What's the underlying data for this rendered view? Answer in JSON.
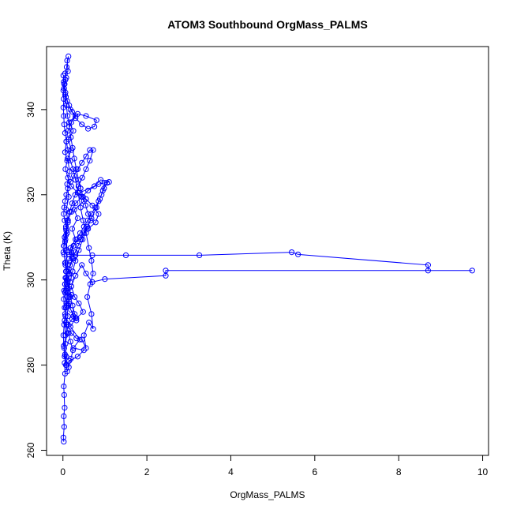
{
  "chart_data": {
    "type": "scatter",
    "title": "ATOM3 Southbound OrgMass_PALMS",
    "xlabel": "OrgMass_PALMS",
    "ylabel": "Theta (K)",
    "xlim": [
      -0.39,
      10.14
    ],
    "ylim": [
      258.8,
      354.8
    ],
    "xticks": [
      0,
      2,
      4,
      6,
      8,
      10
    ],
    "yticks": [
      260,
      280,
      300,
      320,
      340
    ],
    "series_color": "#0000ff",
    "grid": false,
    "legend": "none",
    "plot_style": "lines with open circle markers",
    "series": [
      {
        "values": [
          [
            0.02,
            262.0
          ],
          [
            0.01,
            263.0
          ],
          [
            0.03,
            265.5
          ],
          [
            0.02,
            268.0
          ],
          [
            0.04,
            270.0
          ],
          [
            0.03,
            273.0
          ],
          [
            0.02,
            275.0
          ],
          [
            0.05,
            278.0
          ],
          [
            0.04,
            280.5
          ],
          [
            0.08,
            282.0
          ],
          [
            0.06,
            285.0
          ],
          [
            0.1,
            287.5
          ],
          [
            0.07,
            290.0
          ],
          [
            0.12,
            291.5
          ],
          [
            0.09,
            294.0
          ],
          [
            0.15,
            296.0
          ],
          [
            0.11,
            298.0
          ],
          [
            0.2,
            300.5
          ],
          [
            0.14,
            302.5
          ],
          [
            0.25,
            305.0
          ],
          [
            0.18,
            307.5
          ],
          [
            0.3,
            309.5
          ],
          [
            0.22,
            312.0
          ],
          [
            0.35,
            314.5
          ],
          [
            0.27,
            316.5
          ],
          [
            0.5,
            318.5
          ],
          [
            0.4,
            320.5
          ],
          [
            0.75,
            322.0
          ],
          [
            0.9,
            323.5
          ],
          [
            1.1,
            323.0
          ],
          [
            0.85,
            322.5
          ],
          [
            0.6,
            321.0
          ],
          [
            0.45,
            319.5
          ],
          [
            0.3,
            318.0
          ],
          [
            0.2,
            316.0
          ],
          [
            0.12,
            314.0
          ],
          [
            0.08,
            311.5
          ],
          [
            0.05,
            309.0
          ],
          [
            0.1,
            306.5
          ],
          [
            0.06,
            304.0
          ],
          [
            0.15,
            301.5
          ],
          [
            0.09,
            299.0
          ],
          [
            0.2,
            296.5
          ],
          [
            0.13,
            294.0
          ],
          [
            0.3,
            291.0
          ],
          [
            0.18,
            289.0
          ],
          [
            0.4,
            286.0
          ],
          [
            0.25,
            284.0
          ],
          [
            0.5,
            283.5
          ],
          [
            0.35,
            282.0
          ],
          [
            0.15,
            281.0
          ],
          [
            0.08,
            280.0
          ],
          [
            0.05,
            282.5
          ],
          [
            0.03,
            284.0
          ],
          [
            0.06,
            287.0
          ],
          [
            0.04,
            290.5
          ],
          [
            0.07,
            293.5
          ],
          [
            0.05,
            297.0
          ],
          [
            0.09,
            300.0
          ],
          [
            0.06,
            303.5
          ],
          [
            0.1,
            307.0
          ],
          [
            0.07,
            310.5
          ],
          [
            0.12,
            313.5
          ],
          [
            0.08,
            316.5
          ],
          [
            0.14,
            319.5
          ],
          [
            0.1,
            322.5
          ],
          [
            0.16,
            325.5
          ],
          [
            0.11,
            328.5
          ],
          [
            0.2,
            330.5
          ],
          [
            0.13,
            333.0
          ],
          [
            0.25,
            335.0
          ],
          [
            0.15,
            337.0
          ],
          [
            0.3,
            338.5
          ],
          [
            0.18,
            340.0
          ],
          [
            0.1,
            342.0
          ],
          [
            0.06,
            344.0
          ],
          [
            0.04,
            346.0
          ],
          [
            0.08,
            347.5
          ],
          [
            0.05,
            348.5
          ],
          [
            0.12,
            349.0
          ],
          [
            0.1,
            351.5
          ],
          [
            0.13,
            352.5
          ],
          [
            0.09,
            350.0
          ],
          [
            0.06,
            347.0
          ],
          [
            0.03,
            345.0
          ],
          [
            0.07,
            343.0
          ],
          [
            0.15,
            341.0
          ],
          [
            0.22,
            339.5
          ],
          [
            0.3,
            338.0
          ],
          [
            0.45,
            336.5
          ],
          [
            0.6,
            335.5
          ],
          [
            0.75,
            336.0
          ],
          [
            0.8,
            337.5
          ],
          [
            0.55,
            338.5
          ],
          [
            0.35,
            339.0
          ],
          [
            0.2,
            337.0
          ],
          [
            0.12,
            335.0
          ],
          [
            0.08,
            332.5
          ],
          [
            0.05,
            330.0
          ],
          [
            0.1,
            328.0
          ],
          [
            0.06,
            326.0
          ],
          [
            0.12,
            324.0
          ],
          [
            0.2,
            322.0
          ],
          [
            0.35,
            320.5
          ],
          [
            0.55,
            319.0
          ],
          [
            0.7,
            317.5
          ],
          [
            0.85,
            315.5
          ],
          [
            0.78,
            313.5
          ],
          [
            0.6,
            312.0
          ],
          [
            0.4,
            310.0
          ],
          [
            0.25,
            308.0
          ],
          [
            0.15,
            306.0
          ],
          [
            0.3,
            305.8
          ],
          [
            0.7,
            305.8
          ],
          [
            1.5,
            305.8
          ],
          [
            3.25,
            305.8
          ],
          [
            5.45,
            306.5
          ],
          [
            5.6,
            306.0
          ],
          [
            8.7,
            303.5
          ],
          [
            8.7,
            302.2
          ],
          [
            9.75,
            302.2
          ],
          [
            2.45,
            302.2
          ],
          [
            2.45,
            301.0
          ],
          [
            1.0,
            300.2
          ],
          [
            0.7,
            299.5
          ],
          [
            0.55,
            301.5
          ],
          [
            0.45,
            303.5
          ],
          [
            0.3,
            301.0
          ],
          [
            0.2,
            298.5
          ],
          [
            0.28,
            296.0
          ],
          [
            0.38,
            294.5
          ],
          [
            0.48,
            292.5
          ],
          [
            0.32,
            291.0
          ],
          [
            0.22,
            290.8
          ],
          [
            0.12,
            289.5
          ],
          [
            0.2,
            287.5
          ],
          [
            0.32,
            286.3
          ],
          [
            0.45,
            286.0
          ],
          [
            0.55,
            284.0
          ],
          [
            0.5,
            287.0
          ],
          [
            0.62,
            290.0
          ],
          [
            0.72,
            288.5
          ],
          [
            0.68,
            292.0
          ],
          [
            0.58,
            296.0
          ],
          [
            0.65,
            299.0
          ],
          [
            0.72,
            301.5
          ],
          [
            0.68,
            304.5
          ],
          [
            0.62,
            307.5
          ],
          [
            0.55,
            311.0
          ],
          [
            0.48,
            314.0
          ],
          [
            0.42,
            317.0
          ],
          [
            0.36,
            320.5
          ],
          [
            0.3,
            323.5
          ],
          [
            0.24,
            326.0
          ],
          [
            0.18,
            328.0
          ],
          [
            0.12,
            330.5
          ],
          [
            0.08,
            332.5
          ],
          [
            0.05,
            334.5
          ],
          [
            0.03,
            336.5
          ],
          [
            0.02,
            338.5
          ],
          [
            0.01,
            340.5
          ],
          [
            0.02,
            342.5
          ],
          [
            0.01,
            344.5
          ],
          [
            0.02,
            346.5
          ],
          [
            0.01,
            348.0
          ],
          [
            0.03,
            346.0
          ],
          [
            0.05,
            343.5
          ],
          [
            0.08,
            341.0
          ],
          [
            0.11,
            338.5
          ],
          [
            0.15,
            336.0
          ],
          [
            0.19,
            333.5
          ],
          [
            0.23,
            331.0
          ],
          [
            0.27,
            328.5
          ],
          [
            0.32,
            326.0
          ],
          [
            0.37,
            323.5
          ],
          [
            0.42,
            321.5
          ],
          [
            0.48,
            319.5
          ],
          [
            0.54,
            317.5
          ],
          [
            0.6,
            315.5
          ],
          [
            0.66,
            314.0
          ],
          [
            0.58,
            312.5
          ],
          [
            0.5,
            311.0
          ],
          [
            0.43,
            309.5
          ],
          [
            0.36,
            308.0
          ],
          [
            0.29,
            306.5
          ],
          [
            0.23,
            305.0
          ],
          [
            0.17,
            303.5
          ],
          [
            0.12,
            302.0
          ],
          [
            0.08,
            300.5
          ],
          [
            0.05,
            299.0
          ],
          [
            0.03,
            297.5
          ],
          [
            0.02,
            295.5
          ],
          [
            0.04,
            293.5
          ],
          [
            0.06,
            291.5
          ],
          [
            0.09,
            289.5
          ],
          [
            0.13,
            287.5
          ],
          [
            0.18,
            285.5
          ],
          [
            0.24,
            283.5
          ],
          [
            0.19,
            281.5
          ],
          [
            0.14,
            279.5
          ],
          [
            0.1,
            278.5
          ],
          [
            0.07,
            280.0
          ],
          [
            0.04,
            282.0
          ],
          [
            0.02,
            284.5
          ],
          [
            0.01,
            287.0
          ],
          [
            0.03,
            289.5
          ],
          [
            0.05,
            292.0
          ],
          [
            0.08,
            294.5
          ],
          [
            0.12,
            297.0
          ],
          [
            0.17,
            299.5
          ],
          [
            0.23,
            302.0
          ],
          [
            0.3,
            304.5
          ],
          [
            0.38,
            307.0
          ],
          [
            0.47,
            309.5
          ],
          [
            0.57,
            312.0
          ],
          [
            0.68,
            314.5
          ],
          [
            0.8,
            317.0
          ],
          [
            0.88,
            319.0
          ],
          [
            0.95,
            321.0
          ],
          [
            1.0,
            322.8
          ],
          [
            1.05,
            322.8
          ],
          [
            0.98,
            321.5
          ],
          [
            0.92,
            320.0
          ],
          [
            0.85,
            318.5
          ],
          [
            0.77,
            317.0
          ],
          [
            0.68,
            315.5
          ],
          [
            0.59,
            314.0
          ],
          [
            0.5,
            312.5
          ],
          [
            0.41,
            311.0
          ],
          [
            0.33,
            309.5
          ],
          [
            0.26,
            308.0
          ],
          [
            0.2,
            306.5
          ],
          [
            0.15,
            305.0
          ],
          [
            0.11,
            303.5
          ],
          [
            0.08,
            302.0
          ],
          [
            0.06,
            300.5
          ],
          [
            0.05,
            299.0
          ],
          [
            0.07,
            297.5
          ],
          [
            0.1,
            296.0
          ],
          [
            0.14,
            294.5
          ],
          [
            0.19,
            293.0
          ],
          [
            0.25,
            291.5
          ],
          [
            0.32,
            290.5
          ],
          [
            0.28,
            292.0
          ],
          [
            0.23,
            294.0
          ],
          [
            0.18,
            296.0
          ],
          [
            0.14,
            298.0
          ],
          [
            0.1,
            300.0
          ],
          [
            0.07,
            302.0
          ],
          [
            0.05,
            304.0
          ],
          [
            0.03,
            306.0
          ],
          [
            0.02,
            308.0
          ],
          [
            0.04,
            310.0
          ],
          [
            0.07,
            312.0
          ],
          [
            0.11,
            314.0
          ],
          [
            0.16,
            316.0
          ],
          [
            0.22,
            318.0
          ],
          [
            0.29,
            320.0
          ],
          [
            0.37,
            322.0
          ],
          [
            0.46,
            324.0
          ],
          [
            0.55,
            326.0
          ],
          [
            0.64,
            328.0
          ],
          [
            0.72,
            330.5
          ],
          [
            0.64,
            330.5
          ],
          [
            0.55,
            329.0
          ],
          [
            0.45,
            327.5
          ],
          [
            0.35,
            326.0
          ],
          [
            0.26,
            324.5
          ],
          [
            0.18,
            323.0
          ],
          [
            0.12,
            321.5
          ],
          [
            0.08,
            320.0
          ],
          [
            0.05,
            318.5
          ],
          [
            0.03,
            317.0
          ],
          [
            0.02,
            315.5
          ],
          [
            0.04,
            314.0
          ],
          [
            0.07,
            312.5
          ],
          [
            0.1,
            311.0
          ],
          [
            0.06,
            309.5
          ],
          [
            0.03,
            308.0
          ],
          [
            0.01,
            306.5
          ]
        ]
      }
    ]
  }
}
